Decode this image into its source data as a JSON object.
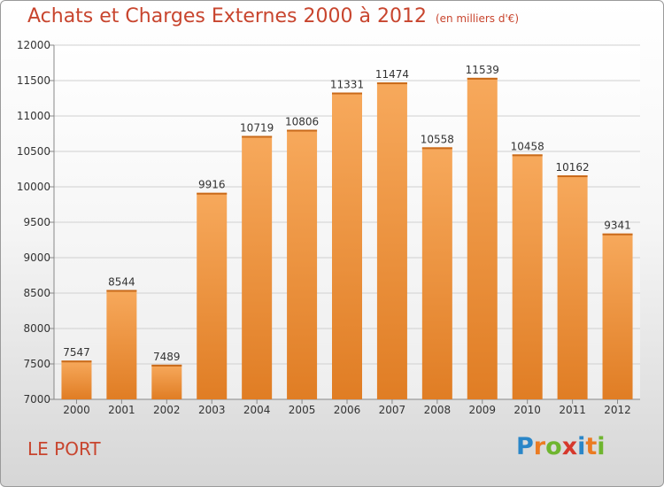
{
  "header": {
    "title": "Achats et Charges Externes 2000 à 2012",
    "subtitle": "(en milliers d'€)"
  },
  "footer": {
    "commune": "LE PORT",
    "logo": "Proxiti"
  },
  "colors": {
    "bar_light": "#f6a85a",
    "bar_dark": "#e07d24",
    "title": "#c8452e"
  },
  "chart_data": {
    "type": "bar",
    "title": "Achats et Charges Externes 2000 à 2012",
    "subtitle": "(en milliers d'€)",
    "xlabel": "",
    "ylabel": "",
    "categories": [
      "2000",
      "2001",
      "2002",
      "2003",
      "2004",
      "2005",
      "2006",
      "2007",
      "2008",
      "2009",
      "2010",
      "2011",
      "2012"
    ],
    "values": [
      7547,
      8544,
      7489,
      9916,
      10719,
      10806,
      11331,
      11474,
      10558,
      11539,
      10458,
      10162,
      9341
    ],
    "ylim": [
      7000,
      12000
    ],
    "yticks": [
      7000,
      7500,
      8000,
      8500,
      9000,
      9500,
      10000,
      10500,
      11000,
      11500,
      12000
    ],
    "grid": true,
    "data_labels": true
  }
}
